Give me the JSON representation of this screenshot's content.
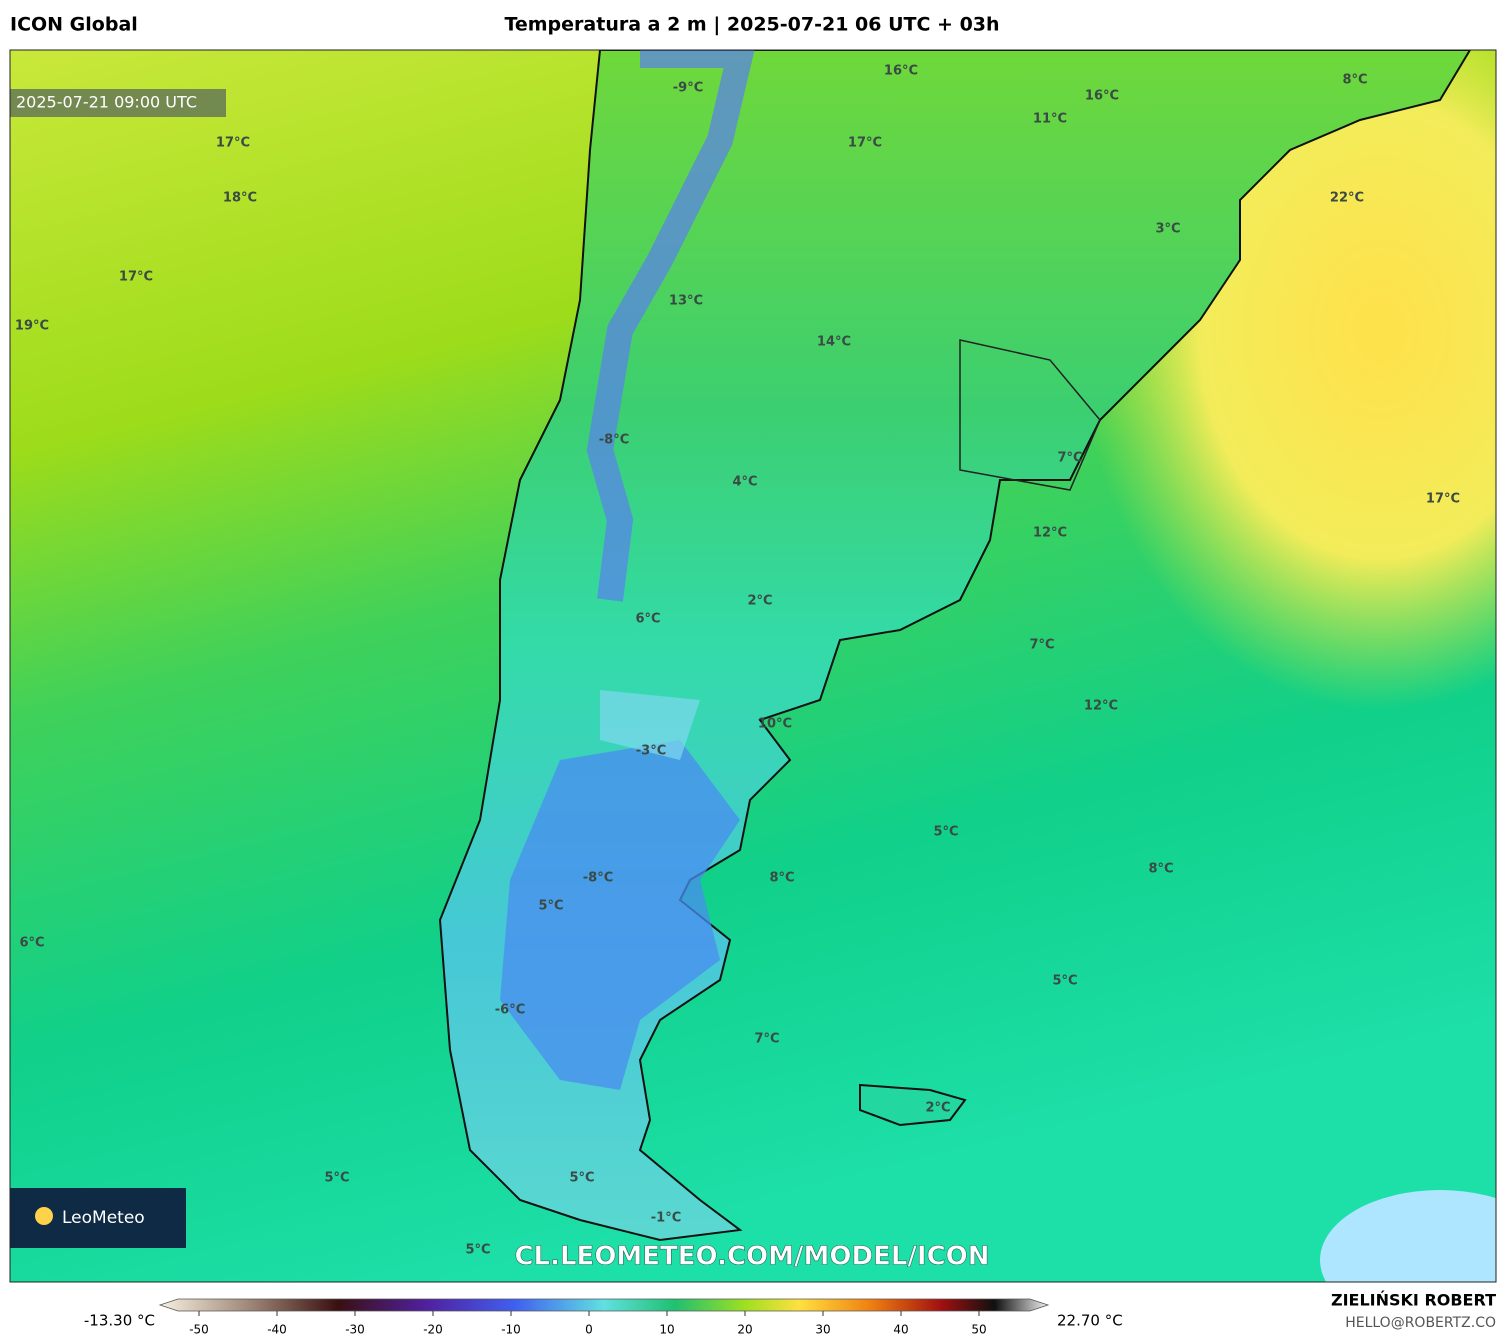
{
  "header": {
    "model": "ICON Global",
    "title": "Temperatura a 2 m | 2025-07-21 06 UTC + 03h"
  },
  "map": {
    "timestamp": "2025-07-21 09:00 UTC",
    "labels": [
      "-9°C",
      "16°C",
      "8°C",
      "16°C",
      "11°C",
      "17°C",
      "17°C",
      "18°C",
      "22°C",
      "3°C",
      "17°C",
      "13°C",
      "19°C",
      "14°C",
      "-8°C",
      "7°C",
      "4°C",
      "17°C",
      "12°C",
      "2°C",
      "6°C",
      "7°C",
      "12°C",
      "10°C",
      "-3°C",
      "5°C",
      "8°C",
      "-8°C",
      "8°C",
      "5°C",
      "6°C",
      "5°C",
      "-6°C",
      "7°C",
      "2°C",
      "5°C",
      "5°C",
      "-1°C",
      "5°C"
    ],
    "watermark": "CL.LEOMETEO.COM/MODEL/ICON",
    "logo": "LeoMeteo"
  },
  "colorbar": {
    "min_label": "-13.30 °C",
    "max_label": "22.70 °C",
    "ticks": [
      -50,
      -40,
      -30,
      -20,
      -10,
      0,
      10,
      20,
      30,
      40,
      50
    ]
  },
  "credits": {
    "author": "ZIELIŃSKI ROBERT",
    "contact": "HELLO@ROBERTZ.CO"
  }
}
